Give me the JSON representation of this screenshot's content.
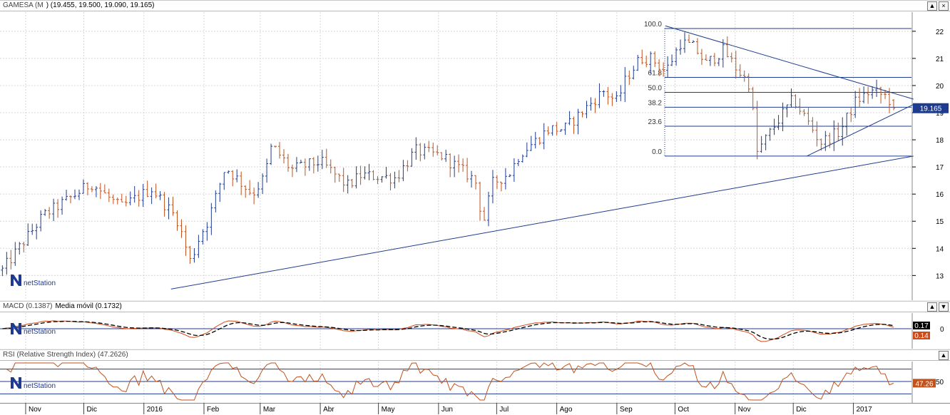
{
  "colors": {
    "up_bar": "#1f3b8f",
    "down_bar": "#c0521c",
    "trendline": "#1f3b8f",
    "fib_line": "#1f3b8f",
    "grid": "#d8d8d8",
    "macd_line": "#d04b1a",
    "signal_line": "#000000",
    "rsi_line": "#c0521c",
    "last_price_box": "#1f3b8f",
    "macd_value_box": "#000000",
    "signal_value_box": "#d04b1a",
    "rsi_value_box": "#c0521c"
  },
  "price_panel": {
    "title": "GAMESA (M",
    "ohlc": ") (19.455, 19.500, 19.090, 19.165)",
    "last_price": "19.165",
    "watermark": "netStation",
    "window_buttons": [
      "▲",
      "×"
    ]
  },
  "macd_panel": {
    "title": "MACD (0.1387)",
    "subtitle": "Media móvil (0.1732)",
    "value_macd": "0.14",
    "value_signal": "0.17",
    "zero_label": "0",
    "watermark": "netStation",
    "window_buttons": [
      "▲",
      "▼"
    ]
  },
  "rsi_panel": {
    "title": "RSI (Relative Strength Index) (47.2626)",
    "value": "47.26",
    "level_label": "50",
    "watermark": "netStation",
    "window_buttons": [
      "▲"
    ]
  },
  "x_axis": {
    "months": [
      "Nov",
      "Dic",
      "2016",
      "Feb",
      "Mar",
      "Abr",
      "May",
      "Jun",
      "Jul",
      "Ago",
      "Sep",
      "Oct",
      "Nov",
      "Dic",
      "2017"
    ]
  },
  "chart_data": [
    {
      "type": "ohlc",
      "title": "GAMESA (M ) (19.455, 19.500, 19.090, 19.165)",
      "period": "2015-10 to 2017-01",
      "ylim": [
        12.3,
        22.6
      ],
      "yticks": [
        13,
        14,
        15,
        16,
        17,
        18,
        19,
        20,
        21,
        22
      ],
      "last_close": 19.165,
      "close_path": {
        "x": [
          "2015-10-20",
          "2015-11-10",
          "2015-11-25",
          "2015-12-05",
          "2015-12-20",
          "2016-01-05",
          "2016-01-18",
          "2016-01-25",
          "2016-01-30",
          "2016-02-03",
          "2016-02-12",
          "2016-02-26",
          "2016-03-03",
          "2016-03-07",
          "2016-03-17",
          "2016-04-01",
          "2016-04-15",
          "2016-04-22",
          "2016-05-10",
          "2016-05-20",
          "2016-06-03",
          "2016-06-20",
          "2016-06-24",
          "2016-06-29",
          "2016-07-08",
          "2016-07-13",
          "2016-07-20",
          "2016-07-28",
          "2016-08-05",
          "2016-08-25",
          "2016-09-01",
          "2016-09-06",
          "2016-09-13",
          "2016-09-19",
          "2016-09-26",
          "2016-10-04",
          "2016-10-11",
          "2016-10-17",
          "2016-10-26",
          "2016-11-02",
          "2016-11-09",
          "2016-11-12",
          "2016-11-23",
          "2016-12-01",
          "2016-12-10",
          "2016-12-15",
          "2016-12-25",
          "2017-01-02",
          "2017-01-10",
          "2017-01-18",
          "2017-01-23"
        ],
        "y": [
          13.2,
          15.2,
          15.9,
          16.4,
          15.5,
          16.2,
          15.1,
          13.5,
          14.5,
          15.0,
          17.0,
          16.0,
          16.6,
          17.8,
          16.9,
          17.2,
          16.3,
          16.7,
          16.6,
          17.6,
          17.4,
          16.5,
          14.9,
          16.4,
          16.8,
          17.5,
          17.9,
          18.4,
          18.4,
          19.8,
          19.4,
          20.3,
          21.0,
          21.0,
          20.5,
          21.6,
          21.4,
          20.8,
          21.3,
          20.6,
          20.0,
          17.5,
          18.7,
          19.5,
          18.5,
          17.9,
          18.3,
          19.4,
          19.8,
          19.6,
          19.165
        ]
      },
      "trendlines": [
        {
          "name": "long-term support",
          "from": [
            "2016-01-15",
            12.5
          ],
          "to": [
            "2017-02-01",
            17.4
          ]
        },
        {
          "name": "upper resistance",
          "from": [
            "2016-09-26",
            22.2
          ],
          "to": [
            "2017-02-01",
            19.5
          ]
        },
        {
          "name": "lower support",
          "from": [
            "2016-12-08",
            17.4
          ],
          "to": [
            "2017-02-01",
            19.3
          ]
        }
      ],
      "fibonacci": {
        "low": 17.4,
        "high": 22.1,
        "levels": [
          {
            "label": "100.0",
            "value": 22.1
          },
          {
            "label": "61.8",
            "value": 20.3
          },
          {
            "label": "50.0",
            "value": 19.75
          },
          {
            "label": "38.2",
            "value": 19.2
          },
          {
            "label": "23.6",
            "value": 18.5
          },
          {
            "label": "0.0",
            "value": 17.4
          }
        ]
      }
    },
    {
      "type": "line",
      "title": "MACD (0.1387)",
      "series": [
        {
          "name": "MACD (0.1387)",
          "value": 0.1387
        },
        {
          "name": "Media móvil (0.1732)",
          "value": 0.1732
        }
      ],
      "zero_line": 0
    },
    {
      "type": "line",
      "title": "RSI (Relative Strength Index) (47.2626)",
      "value": 47.2626,
      "levels": [
        30,
        50,
        70
      ],
      "ylim": [
        20,
        80
      ]
    }
  ]
}
